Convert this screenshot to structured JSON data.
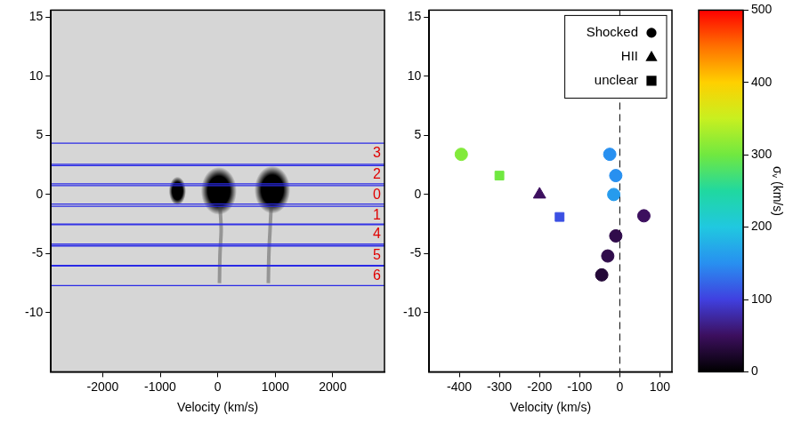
{
  "chart_data": [
    {
      "type": "spectrum",
      "xlabel": "Velocity (km/s)",
      "xlim": [
        -2900,
        2900
      ],
      "xticks": [
        -2000,
        -1000,
        0,
        1000,
        2000
      ],
      "ylim": [
        -15,
        15.6
      ],
      "yticks": [
        -10,
        -5,
        0,
        5,
        10,
        15
      ],
      "color": "#2a2ae6",
      "regions": [
        {
          "label": "3",
          "y": [
            2.55,
            4.35
          ]
        },
        {
          "label": "2",
          "y": [
            0.9,
            2.45
          ]
        },
        {
          "label": "0",
          "y": [
            -0.8,
            0.75
          ]
        },
        {
          "label": "1",
          "y": [
            -2.5,
            -1.0
          ]
        },
        {
          "label": "4",
          "y": [
            -4.2,
            -2.55
          ]
        },
        {
          "label": "5",
          "y": [
            -6.0,
            -4.35
          ]
        },
        {
          "label": "6",
          "y": [
            -7.7,
            -6.05
          ]
        }
      ],
      "blobs": [
        {
          "x": -700,
          "y": 0.3,
          "dx": 110,
          "dy": 0.9
        },
        {
          "x": 20,
          "y": 0.3,
          "dx": 230,
          "dy": 1.5
        },
        {
          "x": 950,
          "y": 0.4,
          "dx": 230,
          "dy": 1.5
        }
      ],
      "streaks": [
        {
          "x": [
            40,
            60,
            40,
            30
          ],
          "y": [
            -1,
            -3,
            -5,
            -7.5
          ]
        },
        {
          "x": [
            930,
            910,
            890,
            880
          ],
          "y": [
            -1,
            -3,
            -5,
            -7.5
          ]
        }
      ]
    },
    {
      "type": "scatter",
      "xlabel": "Velocity (km/s)",
      "xlim": [
        -475,
        130
      ],
      "xticks": [
        -400,
        -300,
        -200,
        -100,
        0,
        100
      ],
      "ylim": [
        -15,
        15.6
      ],
      "yticks": [
        -10,
        -5,
        0,
        5,
        10,
        15
      ],
      "legend": "upper right",
      "vline": 0,
      "series": [
        {
          "name": "Shocked",
          "marker": "circle",
          "x": [
            -395,
            -25,
            -10,
            -15,
            -10,
            -30,
            -45,
            60
          ],
          "y": [
            3.4,
            3.4,
            1.6,
            0,
            -3.5,
            -5.2,
            -6.8,
            -1.8
          ],
          "sigma_v": [
            310,
            150,
            150,
            160,
            40,
            40,
            30,
            50
          ]
        },
        {
          "name": "HII",
          "marker": "triangle",
          "x": [
            -200
          ],
          "y": [
            0
          ],
          "sigma_v": [
            50
          ]
        },
        {
          "name": "unclear",
          "marker": "square",
          "x": [
            -300,
            -150
          ],
          "y": [
            1.6,
            -1.9
          ],
          "sigma_v": [
            300,
            110
          ]
        }
      ],
      "colorbar": {
        "label": "σᵥ (km/s)",
        "lim": [
          0,
          500
        ],
        "ticks": [
          0,
          100,
          200,
          300,
          400,
          500
        ]
      }
    }
  ]
}
